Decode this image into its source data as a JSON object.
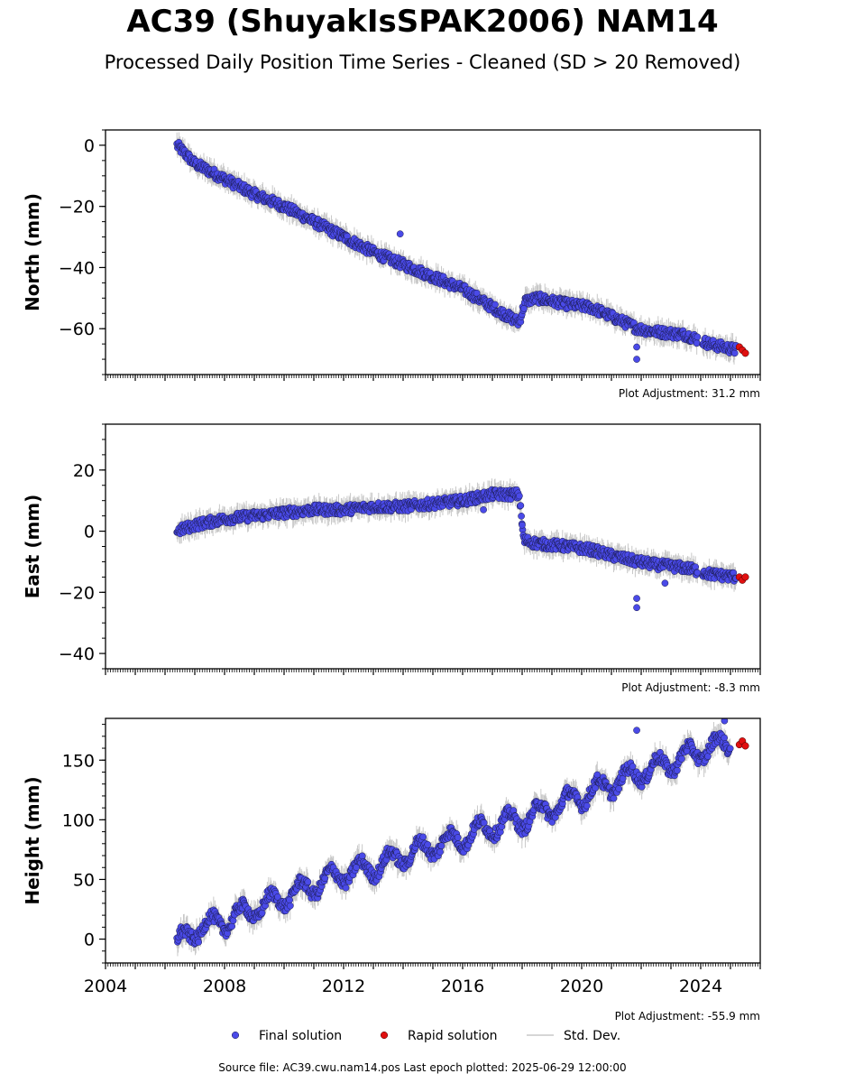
{
  "title": "AC39 (ShuyakIsSPAK2006) NAM14",
  "subtitle": "Processed Daily Position Time Series - Cleaned (SD > 20 Removed)",
  "source_line": "Source file: AC39.cwu.nam14.pos  Last epoch plotted: 2025-06-29 12:00:00",
  "legend": {
    "final": "Final solution",
    "rapid": "Rapid solution",
    "std": "Std. Dev."
  },
  "colors": {
    "final": "#4a4ae8",
    "rapid": "#e01010",
    "std": "#c8c8c8"
  },
  "chart_data": [
    {
      "type": "scatter",
      "ylabel": "North (mm)",
      "adjustment": "Plot Adjustment: 31.2 mm",
      "xlim": [
        2004,
        2026
      ],
      "ylim": [
        -75,
        5
      ],
      "yticks": [
        0,
        -20,
        -40,
        -60
      ],
      "xtick_labels_shown": false,
      "series": [
        {
          "name": "Final solution",
          "x": [
            2006.4,
            2007.0,
            2008.0,
            2009.0,
            2010.0,
            2011.0,
            2012.0,
            2013.0,
            2014.0,
            2015.0,
            2016.0,
            2017.0,
            2017.9,
            2018.1,
            2018.5,
            2019.5,
            2020.3,
            2021.0,
            2021.9,
            2022.5,
            2023.5,
            2024.3,
            2025.2
          ],
          "y": [
            0,
            -6,
            -11,
            -16,
            -20,
            -25,
            -30,
            -35,
            -39,
            -43,
            -47,
            -53,
            -58,
            -51,
            -50,
            -52,
            -53,
            -56,
            -60,
            -61,
            -62,
            -65,
            -67
          ]
        },
        {
          "name": "Rapid solution",
          "x": [
            2025.3,
            2025.4,
            2025.5
          ],
          "y": [
            -66,
            -67,
            -68
          ]
        }
      ],
      "outliers": [
        {
          "x": 2013.9,
          "y": -29
        },
        {
          "x": 2021.85,
          "y": -66
        },
        {
          "x": 2021.85,
          "y": -70
        }
      ]
    },
    {
      "type": "scatter",
      "ylabel": "East (mm)",
      "adjustment": "Plot Adjustment: -8.3 mm",
      "xlim": [
        2004,
        2026
      ],
      "ylim": [
        -45,
        35
      ],
      "yticks": [
        20,
        0,
        -20,
        -40
      ],
      "xtick_labels_shown": false,
      "series": [
        {
          "name": "Final solution",
          "x": [
            2006.4,
            2007.0,
            2008.0,
            2009.0,
            2010.0,
            2011.0,
            2012.0,
            2013.0,
            2014.0,
            2015.0,
            2016.0,
            2017.0,
            2017.9,
            2018.05,
            2018.5,
            2019.5,
            2020.3,
            2021.0,
            2021.9,
            2022.5,
            2023.5,
            2024.3,
            2025.2
          ],
          "y": [
            0,
            2,
            4,
            5,
            6,
            7,
            7,
            8,
            8,
            9,
            10,
            12,
            12,
            -3,
            -4,
            -5,
            -6,
            -8,
            -10,
            -11,
            -12,
            -14,
            -15
          ]
        },
        {
          "name": "Rapid solution",
          "x": [
            2025.3,
            2025.4,
            2025.5
          ],
          "y": [
            -15,
            -16,
            -15
          ]
        }
      ],
      "outliers": [
        {
          "x": 2018.0,
          "y": 2
        },
        {
          "x": 2016.7,
          "y": 7
        },
        {
          "x": 2021.85,
          "y": -22
        },
        {
          "x": 2021.85,
          "y": -25
        },
        {
          "x": 2022.8,
          "y": -17
        }
      ]
    },
    {
      "type": "scatter",
      "ylabel": "Height (mm)",
      "adjustment": "Plot Adjustment: -55.9 mm",
      "xlim": [
        2004,
        2026
      ],
      "ylim": [
        -20,
        185
      ],
      "yticks": [
        0,
        50,
        100,
        150
      ],
      "xticks": [
        2004,
        2008,
        2012,
        2016,
        2020,
        2024
      ],
      "xtick_labels_shown": true,
      "series": [
        {
          "name": "Final solution",
          "x": [
            2006.4,
            2007.0,
            2008.0,
            2009.0,
            2010.0,
            2011.0,
            2012.0,
            2013.0,
            2014.0,
            2015.0,
            2016.0,
            2017.0,
            2018.0,
            2019.0,
            2020.0,
            2021.0,
            2022.0,
            2023.0,
            2024.0,
            2025.0
          ],
          "y": [
            -5,
            8,
            15,
            25,
            35,
            45,
            55,
            60,
            70,
            78,
            85,
            95,
            100,
            110,
            120,
            130,
            140,
            148,
            158,
            165
          ]
        },
        {
          "name": "Rapid solution",
          "x": [
            2025.3,
            2025.4,
            2025.5
          ],
          "y": [
            163,
            166,
            162
          ]
        }
      ],
      "outliers": [
        {
          "x": 2021.85,
          "y": 175
        },
        {
          "x": 2024.8,
          "y": 183
        }
      ]
    }
  ]
}
